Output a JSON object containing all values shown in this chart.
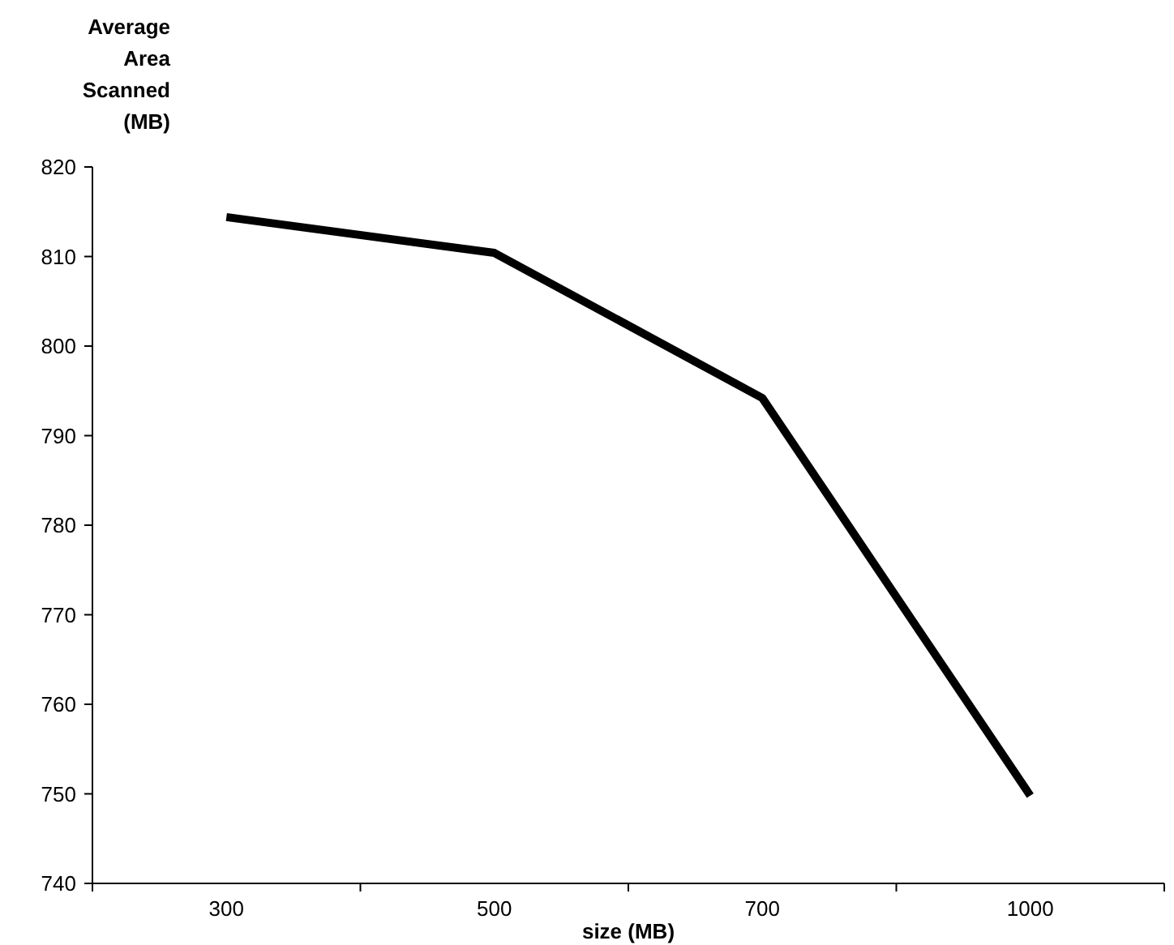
{
  "chart_data": {
    "type": "line",
    "ylabel": "Average Area Scanned (MB)",
    "xlabel": "size (MB)",
    "categories": [
      "300",
      "500",
      "700",
      "1000"
    ],
    "series": [
      {
        "color": "#000000",
        "values": [
          814.4,
          810.4,
          794.2,
          749.8
        ]
      }
    ],
    "ylim": [
      740,
      820
    ],
    "yticks": [
      740,
      750,
      760,
      770,
      780,
      790,
      800,
      810,
      820
    ],
    "grid": false,
    "marker": "none",
    "line_style": "solid"
  }
}
